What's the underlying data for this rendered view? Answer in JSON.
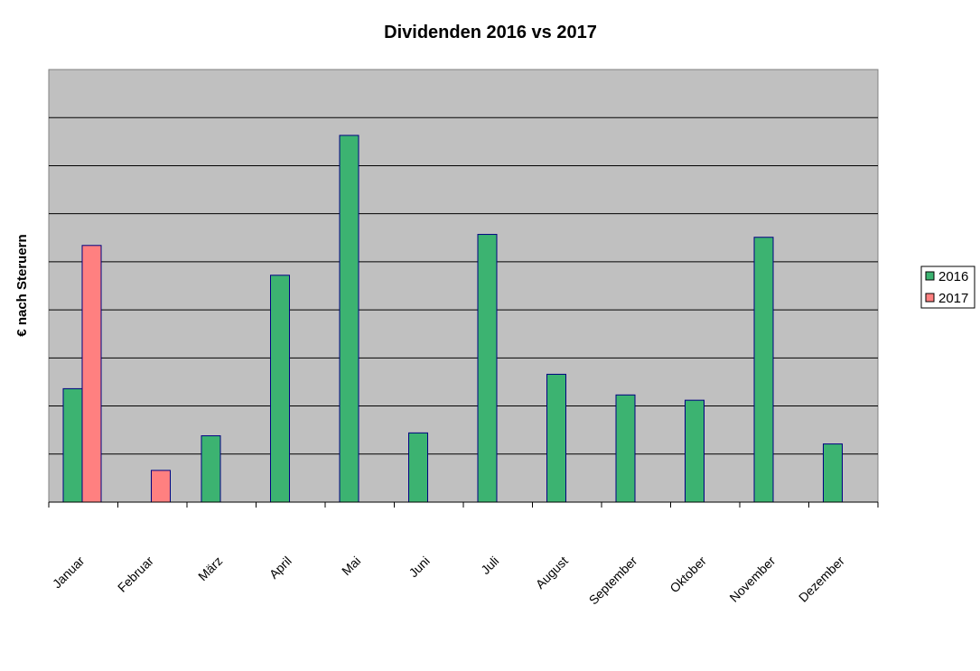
{
  "chart_data": {
    "type": "bar",
    "title": "Dividenden 2016 vs 2017",
    "xlabel": "",
    "ylabel": "€ nach Steruern",
    "categories": [
      "Januar",
      "Februar",
      "März",
      "April",
      "Mai",
      "Juni",
      "Juli",
      "August",
      "September",
      "Oktober",
      "November",
      "Dezember"
    ],
    "series": [
      {
        "name": "2016",
        "values": [
          2.36,
          null,
          1.38,
          4.72,
          7.63,
          1.44,
          5.57,
          2.66,
          2.23,
          2.12,
          5.51,
          1.21
        ]
      },
      {
        "name": "2017",
        "values": [
          5.34,
          0.66,
          null,
          null,
          null,
          null,
          null,
          null,
          null,
          null,
          null,
          null
        ]
      }
    ],
    "ylim": [
      0,
      9
    ],
    "grid": true,
    "y_tick_labels_shown": false,
    "legend_position": "right",
    "colors": {
      "2016": "#3cb371",
      "2017": "#ff8080",
      "plot_background": "#c0c0c0",
      "bar_outline": "#000080",
      "gridline": "#000000"
    }
  }
}
